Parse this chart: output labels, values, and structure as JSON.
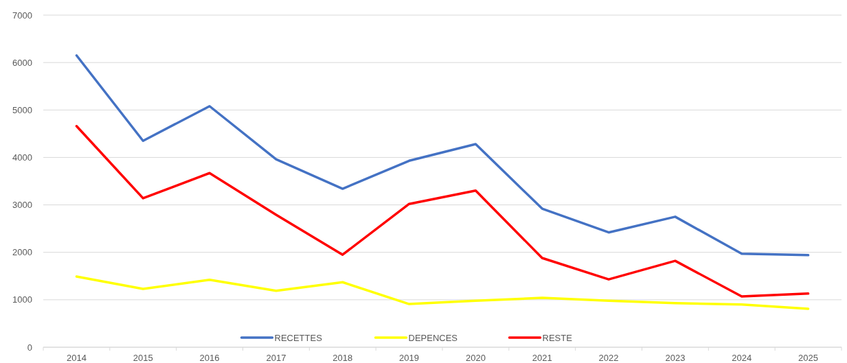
{
  "chart_data": {
    "type": "line",
    "categories": [
      "2014",
      "2015",
      "2016",
      "2017",
      "2018",
      "2019",
      "2020",
      "2021",
      "2022",
      "2023",
      "2024",
      "2025"
    ],
    "series": [
      {
        "name": "RECETTES",
        "color": "#4472c4",
        "values": [
          6150,
          4350,
          5080,
          3960,
          3340,
          3930,
          4280,
          2920,
          2420,
          2750,
          1970,
          1940
        ]
      },
      {
        "name": "DEPENCES",
        "color": "#ffff00",
        "values": [
          1490,
          1230,
          1420,
          1190,
          1370,
          910,
          980,
          1040,
          980,
          930,
          900,
          810
        ]
      },
      {
        "name": "RESTE",
        "color": "#ff0000",
        "values": [
          4660,
          3140,
          3670,
          2790,
          1950,
          3020,
          3300,
          1880,
          1430,
          1820,
          1070,
          1130
        ]
      }
    ],
    "ylim": [
      0,
      7000
    ],
    "yticks": [
      0,
      1000,
      2000,
      3000,
      4000,
      5000,
      6000,
      7000
    ],
    "grid": "y",
    "legend": "bottom",
    "marker": "none",
    "line_style": "solid"
  }
}
